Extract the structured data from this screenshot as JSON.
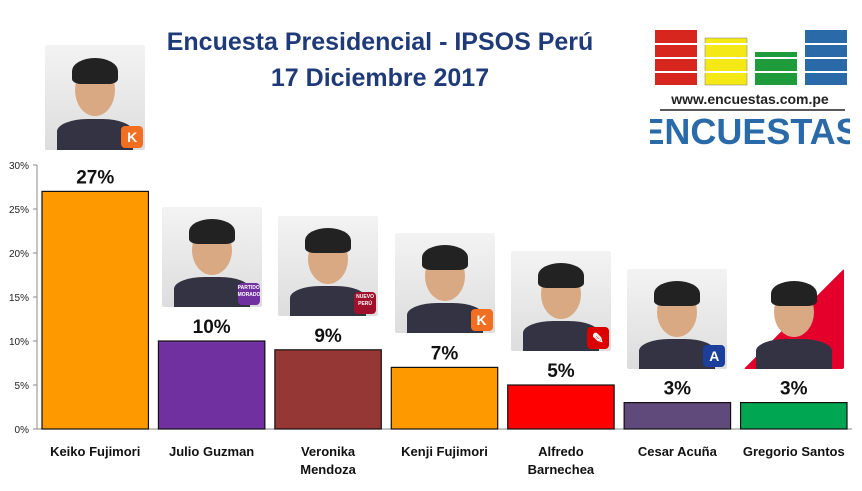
{
  "header": {
    "title_line1": "Encuesta Presidencial - IPSOS Perú",
    "title_line2": "17 Diciembre 2017"
  },
  "logo": {
    "url_text": "www.encuestas.com.pe",
    "brand": "ENCUESTAS",
    "colors": [
      "#d7261e",
      "#f5e915",
      "#1e9b3a",
      "#2a6aa8"
    ]
  },
  "chart_data": {
    "type": "bar",
    "title": "Encuesta Presidencial - IPSOS Perú 17 Diciembre 2017",
    "categories": [
      [
        "Keiko Fujimori"
      ],
      [
        "Julio Guzman"
      ],
      [
        "Veronika",
        "Mendoza"
      ],
      [
        "Kenji Fujimori"
      ],
      [
        "Alfredo",
        "Barnechea"
      ],
      [
        "Cesar Acuña"
      ],
      [
        "Gregorio Santos"
      ]
    ],
    "values": [
      27,
      10,
      9,
      7,
      5,
      3,
      3
    ],
    "labels": [
      "27%",
      "10%",
      "9%",
      "7%",
      "5%",
      "3%",
      "3%"
    ],
    "colors": [
      "#ff9900",
      "#7030a0",
      "#953735",
      "#ff9900",
      "#ff0000",
      "#604a7b",
      "#00a651"
    ],
    "ylim": [
      0,
      30
    ],
    "yticks": [
      0,
      5,
      10,
      15,
      20,
      25,
      30
    ],
    "ytick_labels": [
      "0%",
      "5%",
      "10%",
      "15%",
      "20%",
      "25%",
      "30%"
    ],
    "xlabel": "",
    "ylabel": "",
    "grid": false
  },
  "photos": [
    {
      "name": "Keiko Fujimori",
      "badge": "K",
      "badge_color": "#f26f21"
    },
    {
      "name": "Julio Guzman",
      "badge": "PARTIDO MORADO",
      "badge_color": "#7030a0"
    },
    {
      "name": "Veronika Mendoza",
      "badge": "NUEVO PERÚ",
      "badge_color": "#a0102a"
    },
    {
      "name": "Kenji Fujimori",
      "badge": "K",
      "badge_color": "#f26f21"
    },
    {
      "name": "Alfredo Barnechea",
      "badge": "✎",
      "badge_color": "#d00"
    },
    {
      "name": "Cesar Acuña",
      "badge": "A",
      "badge_color": "#1b3f9b"
    },
    {
      "name": "Gregorio Santos",
      "badge": "",
      "badge_color": "#e4002b"
    }
  ]
}
